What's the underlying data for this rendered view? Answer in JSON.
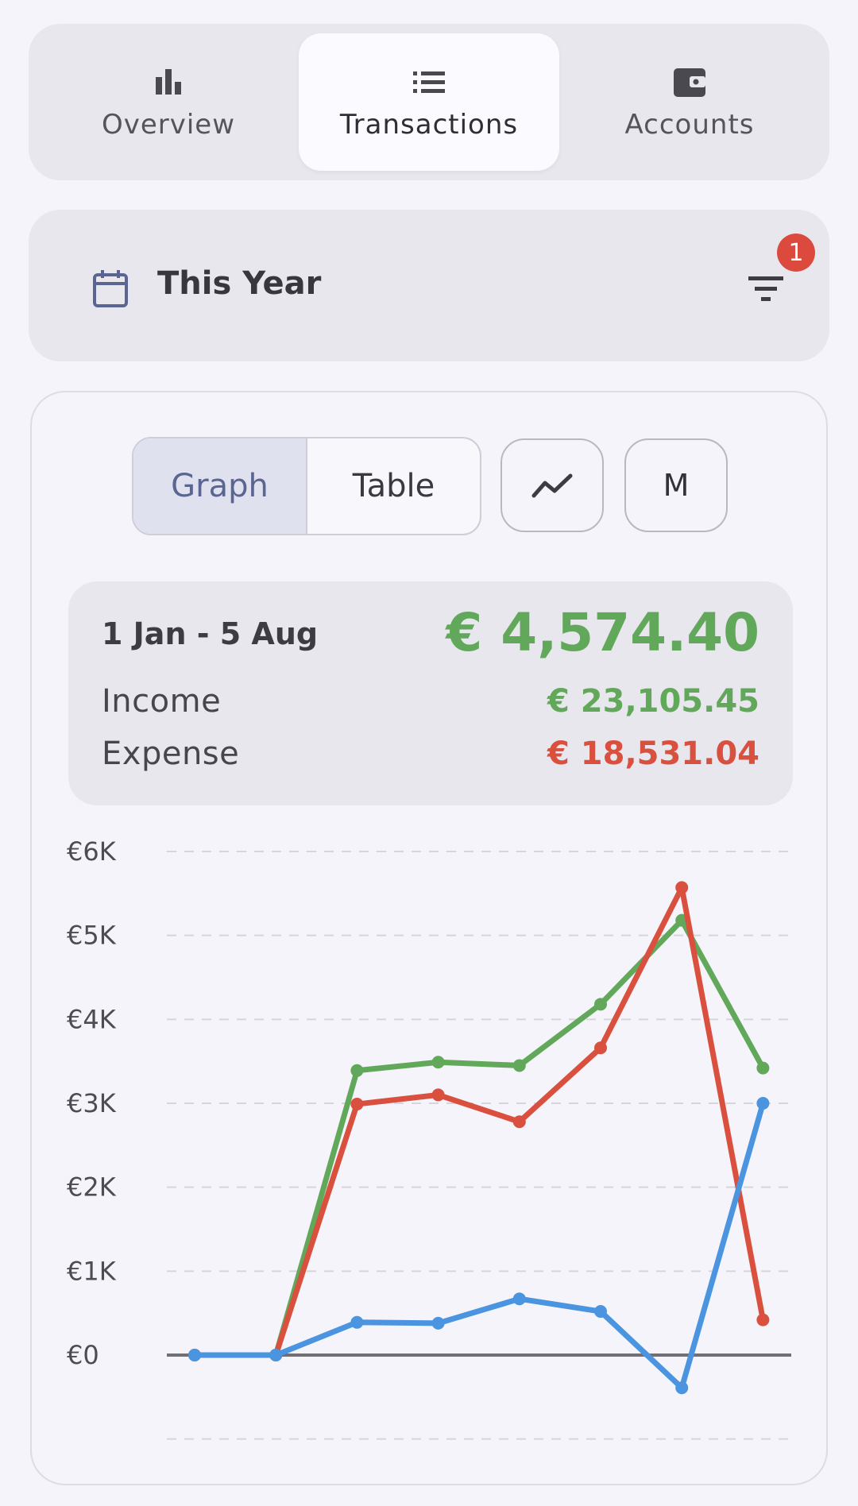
{
  "nav": {
    "tabs": [
      {
        "label": "Overview",
        "icon": "bar-chart-icon",
        "active": false
      },
      {
        "label": "Transactions",
        "icon": "list-icon",
        "active": true
      },
      {
        "label": "Accounts",
        "icon": "wallet-icon",
        "active": false
      }
    ]
  },
  "period": {
    "label": "This Year",
    "filter_badge": "1"
  },
  "view_toggle": {
    "graph_label": "Graph",
    "table_label": "Table",
    "selected": "Graph",
    "interval_label": "M"
  },
  "summary": {
    "range": "1 Jan - 5 Aug",
    "net": "€ 4,574.40",
    "income_label": "Income",
    "income_value": "€ 23,105.45",
    "expense_label": "Expense",
    "expense_value": "€ 18,531.04"
  },
  "colors": {
    "income": "#62a85a",
    "expense": "#d9503f",
    "balance": "#4a94e0",
    "badge": "#db4a3d"
  },
  "chart_data": {
    "type": "line",
    "x": [
      1,
      2,
      3,
      4,
      5,
      6,
      7,
      8
    ],
    "ylim": [
      -1000,
      6000
    ],
    "yticks": [
      "€6K",
      "€5K",
      "€4K",
      "€3K",
      "€2K",
      "€1K",
      "€0"
    ],
    "grid": true,
    "series": [
      {
        "key": "income",
        "values": [
          0,
          0,
          3390,
          3490,
          3450,
          4180,
          5180,
          3420
        ]
      },
      {
        "key": "expense",
        "values": [
          0,
          0,
          2990,
          3100,
          2780,
          3660,
          5570,
          420
        ]
      },
      {
        "key": "balance",
        "values": [
          0,
          0,
          390,
          380,
          670,
          520,
          -390,
          3000
        ]
      }
    ]
  }
}
